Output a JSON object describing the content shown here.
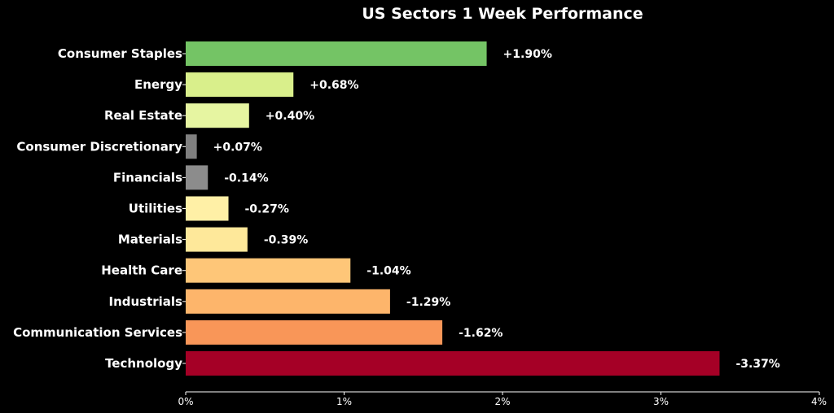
{
  "chart_data": {
    "type": "bar",
    "orientation": "horizontal",
    "title": "US Sectors 1 Week Performance",
    "xlabel": "",
    "ylabel": "",
    "xlim": [
      0,
      4
    ],
    "x_ticks": [
      0,
      1,
      2,
      3,
      4
    ],
    "x_tick_labels": [
      "0%",
      "1%",
      "2%",
      "3%",
      "4%"
    ],
    "grid": false,
    "legend": "none",
    "background": "#000000",
    "categories": [
      "Consumer Staples",
      "Energy",
      "Real Estate",
      "Consumer Discretionary",
      "Financials",
      "Utilities",
      "Materials",
      "Health Care",
      "Industrials",
      "Communication Services",
      "Technology"
    ],
    "values": [
      1.9,
      0.68,
      0.4,
      0.07,
      -0.14,
      -0.27,
      -0.39,
      -1.04,
      -1.29,
      -1.62,
      -3.37
    ],
    "value_labels": [
      "+1.90%",
      "+0.68%",
      "+0.40%",
      "+0.07%",
      "-0.14%",
      "-0.27%",
      "-0.39%",
      "-1.04%",
      "-1.29%",
      "-1.62%",
      "-3.37%"
    ],
    "colors": [
      "#74c465",
      "#d9ef8b",
      "#e6f5a1",
      "#808080",
      "#8c8c8c",
      "#fff0a6",
      "#fee89a",
      "#fec678",
      "#fdb56b",
      "#f99658",
      "#a50026"
    ]
  }
}
